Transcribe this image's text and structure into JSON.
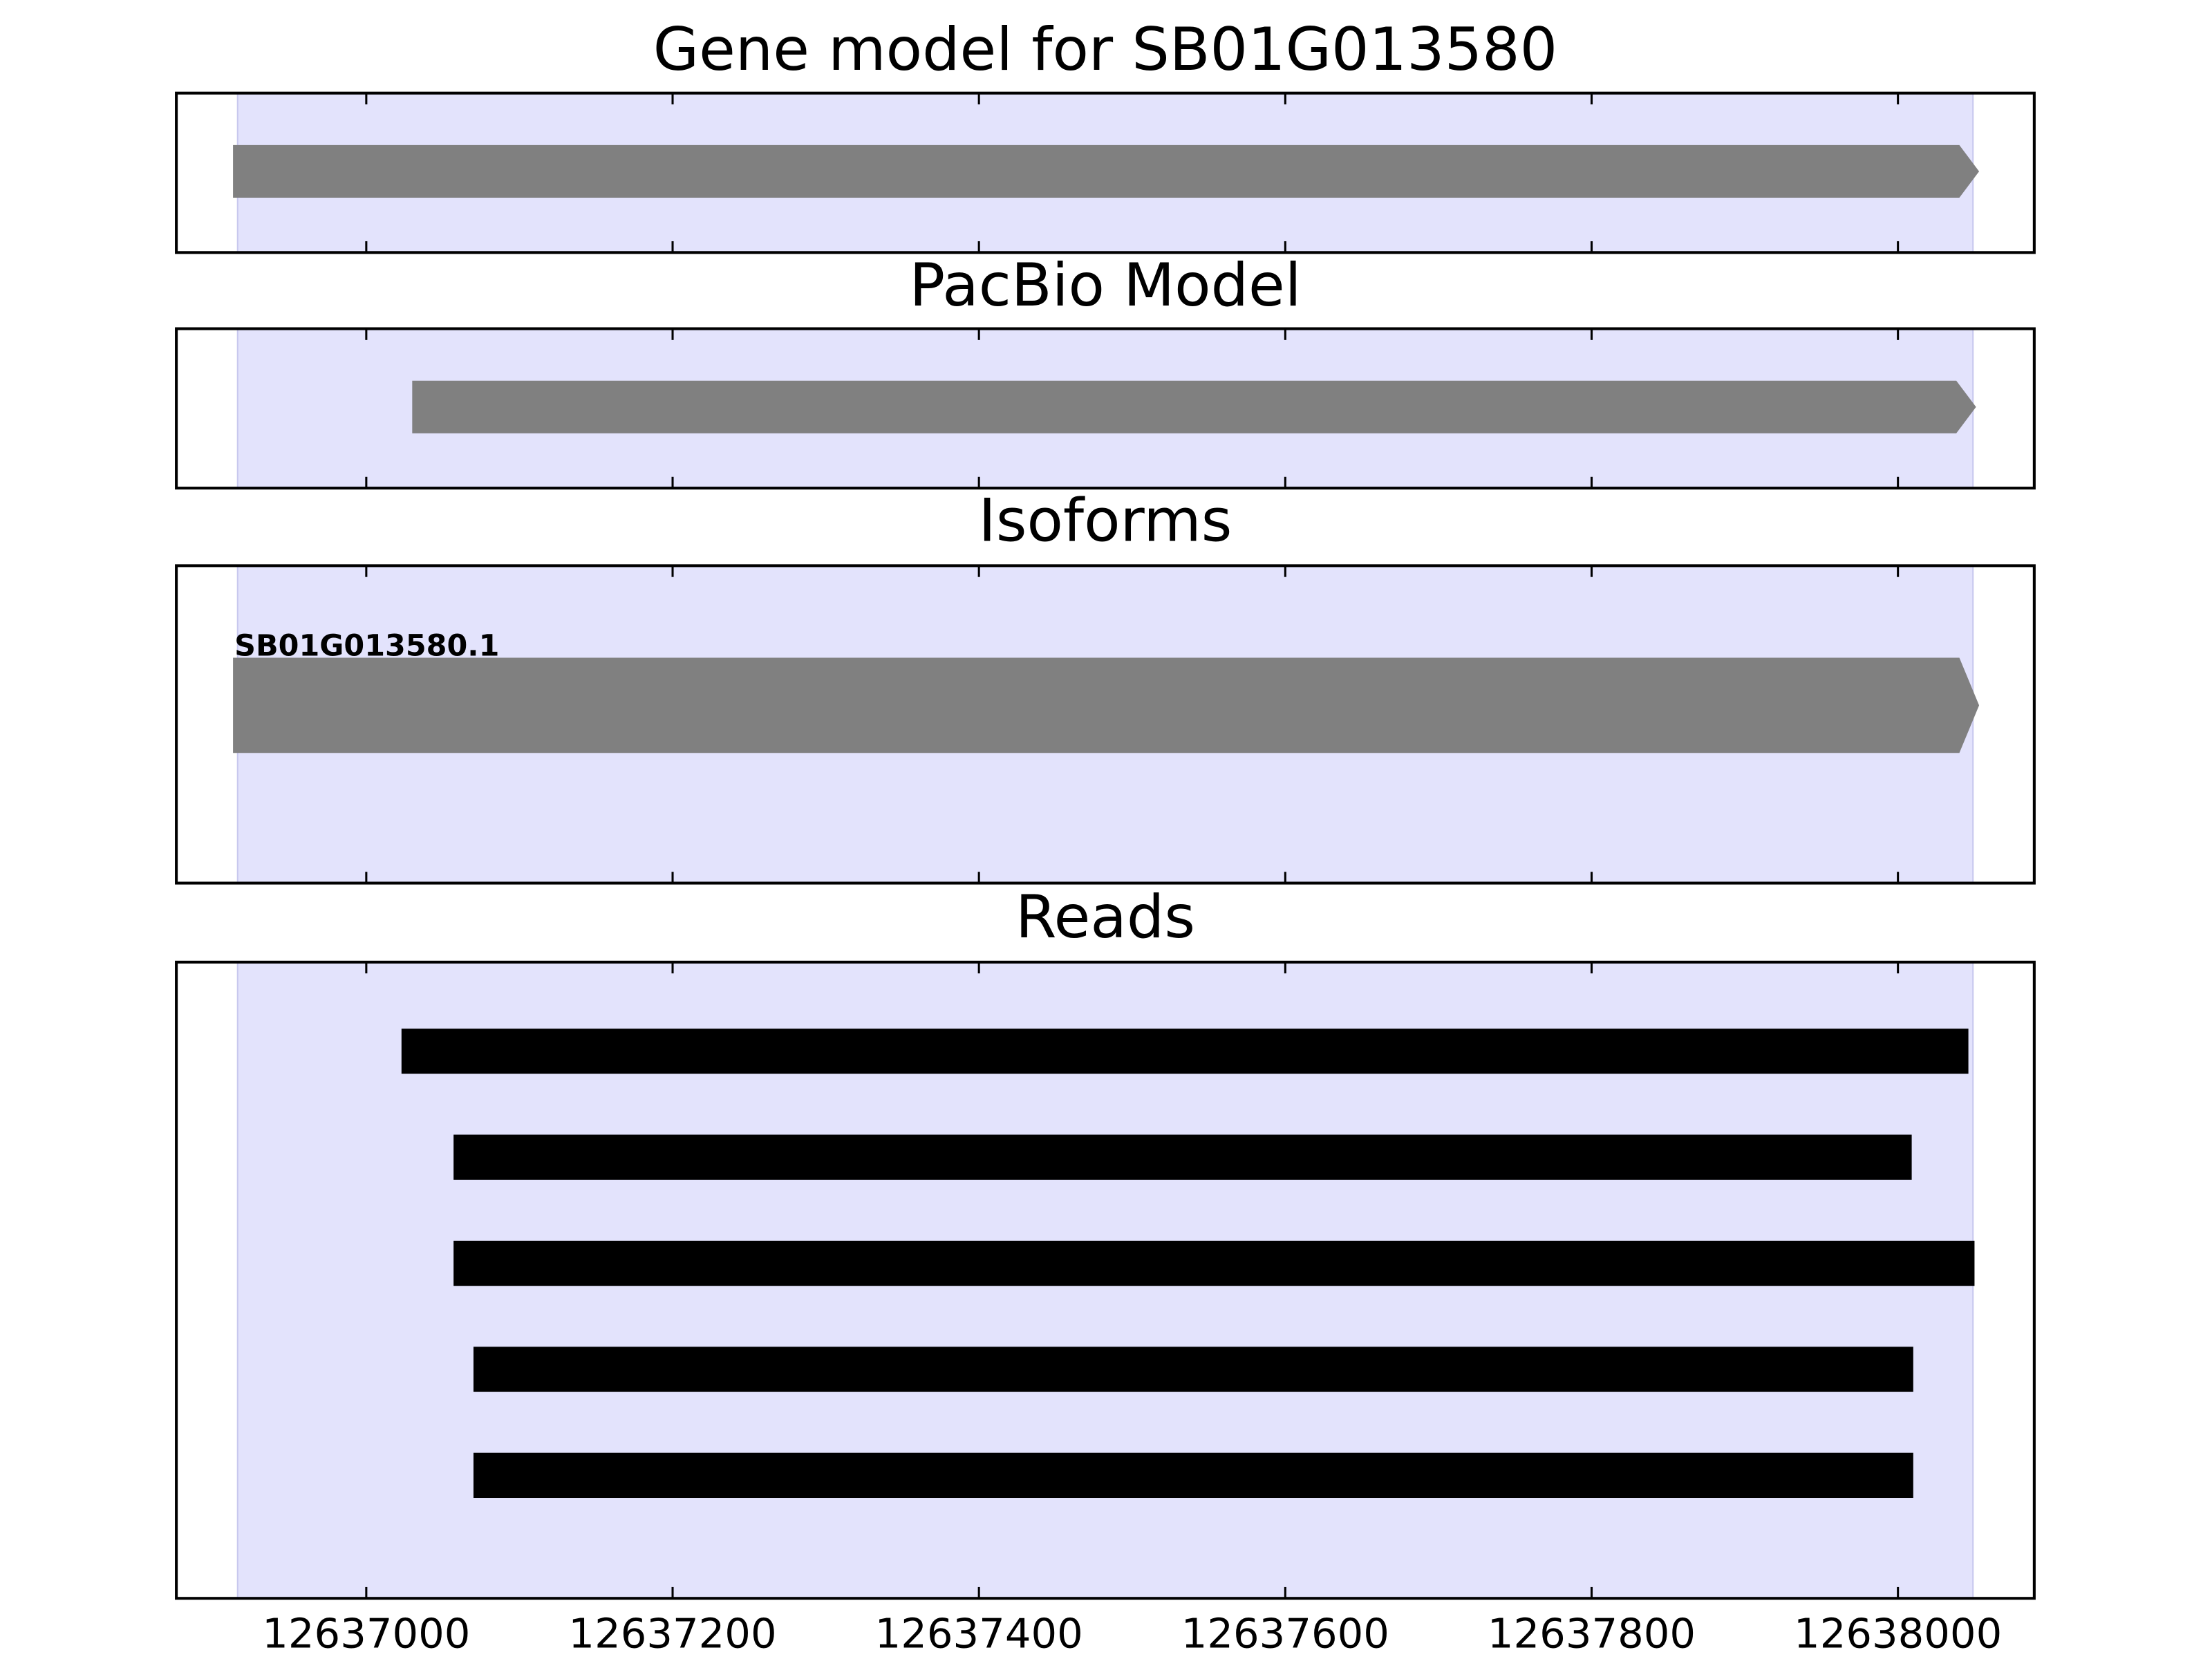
{
  "chart_data": [
    {
      "type": "gene_track",
      "title": "Gene model for SB01G013580",
      "xlim": [
        12636876,
        12638089
      ],
      "highlight": [
        12636916,
        12638049
      ],
      "highlight_color": "#e3e3fc",
      "color": "#808080",
      "features": [
        {
          "start": 12636913,
          "end": 12638053
        }
      ]
    },
    {
      "type": "gene_track",
      "title": "PacBio Model",
      "xlim": [
        12636876,
        12638089
      ],
      "highlight": [
        12636916,
        12638049
      ],
      "highlight_color": "#e3e3fc",
      "color": "#808080",
      "features": [
        {
          "start": 12637030,
          "end": 12638051
        }
      ]
    },
    {
      "type": "gene_track",
      "title": "Isoforms",
      "xlim": [
        12636876,
        12638089
      ],
      "highlight": [
        12636916,
        12638049
      ],
      "highlight_color": "#e3e3fc",
      "color": "#808080",
      "features": [
        {
          "name": "SB01G013580.1",
          "start": 12636913,
          "end": 12638053
        }
      ]
    },
    {
      "type": "reads",
      "title": "Reads",
      "xlim": [
        12636876,
        12638089
      ],
      "highlight": [
        12636916,
        12638049
      ],
      "highlight_color": "#e3e3fc",
      "color": "#000000",
      "xticks": [
        12637000,
        12637200,
        12637400,
        12637600,
        12637800,
        12638000
      ],
      "features": [
        {
          "start": 12637023,
          "end": 12638046
        },
        {
          "start": 12637057,
          "end": 12638009
        },
        {
          "start": 12637057,
          "end": 12638050
        },
        {
          "start": 12637070,
          "end": 12638010
        },
        {
          "start": 12637070,
          "end": 12638010
        }
      ]
    }
  ]
}
